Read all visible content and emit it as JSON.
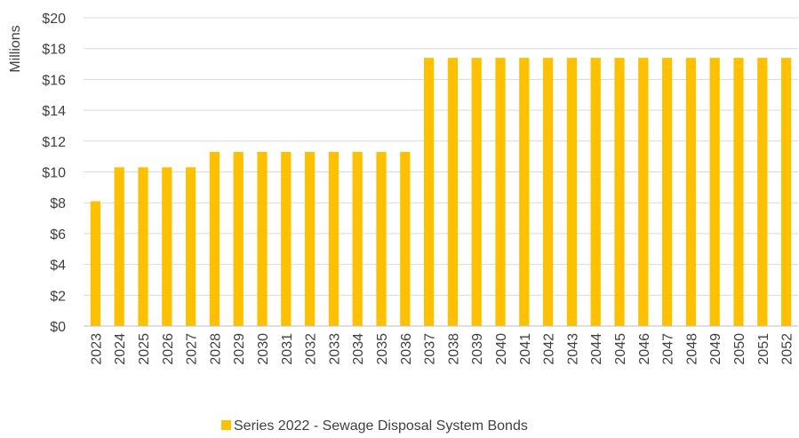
{
  "chart_data": {
    "type": "bar",
    "title": "",
    "xlabel": "",
    "ylabel": "Millions",
    "ylim": [
      0,
      20
    ],
    "yticks": [
      "$0",
      "$2",
      "$4",
      "$6",
      "$8",
      "$10",
      "$12",
      "$14",
      "$16",
      "$18",
      "$20"
    ],
    "grid": true,
    "legend_position": "bottom",
    "categories": [
      "2023",
      "2024",
      "2025",
      "2026",
      "2027",
      "2028",
      "2029",
      "2030",
      "2031",
      "2032",
      "2033",
      "2034",
      "2035",
      "2036",
      "2037",
      "2038",
      "2039",
      "2040",
      "2041",
      "2042",
      "2043",
      "2044",
      "2045",
      "2046",
      "2047",
      "2048",
      "2049",
      "2050",
      "2051",
      "2052"
    ],
    "series": [
      {
        "name": "Series 2022 - Sewage Disposal System Bonds",
        "color": "#FFC000",
        "values": [
          8.1,
          10.3,
          10.3,
          10.3,
          10.3,
          11.3,
          11.3,
          11.3,
          11.3,
          11.3,
          11.3,
          11.3,
          11.3,
          11.3,
          17.4,
          17.4,
          17.4,
          17.4,
          17.4,
          17.4,
          17.4,
          17.4,
          17.4,
          17.4,
          17.4,
          17.4,
          17.4,
          17.4,
          17.4,
          17.4
        ]
      }
    ]
  }
}
